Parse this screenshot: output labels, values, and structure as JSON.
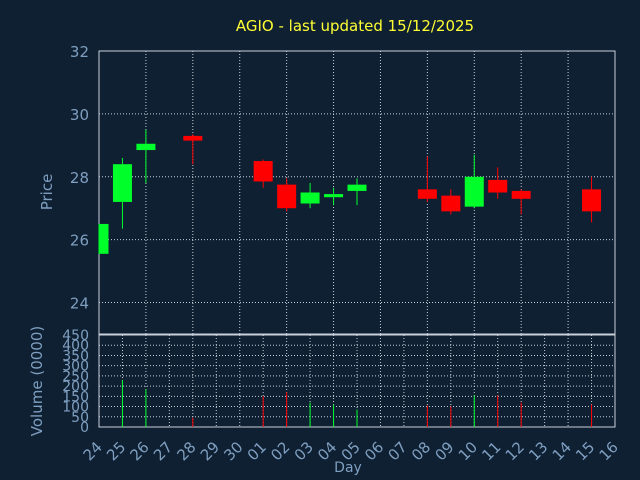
{
  "chart_data": {
    "type": "candlestick",
    "title": "AGIO - last updated 15/12/2025",
    "colors": {
      "background": "#0f2033",
      "title": "#ffff33",
      "axis_text": "#7f9fc0",
      "up": "#00ff2a",
      "down": "#ff0000",
      "frame": "#c8d0da"
    },
    "x": {
      "label": "Day",
      "ticks": [
        "24",
        "25",
        "26",
        "27",
        "28",
        "29",
        "30",
        "01",
        "02",
        "03",
        "04",
        "05",
        "06",
        "07",
        "08",
        "09",
        "10",
        "11",
        "12",
        "13",
        "14",
        "15",
        "16"
      ]
    },
    "price": {
      "label": "Price",
      "ylim": [
        23,
        32
      ],
      "ticks": [
        24,
        26,
        28,
        30,
        32
      ],
      "candles": [
        {
          "x": "24",
          "open": 25.55,
          "high": 26.5,
          "low": 25.55,
          "close": 26.5
        },
        {
          "x": "25",
          "open": 27.2,
          "high": 28.6,
          "low": 26.35,
          "close": 28.4
        },
        {
          "x": "26",
          "open": 28.85,
          "high": 29.5,
          "low": 27.8,
          "close": 29.05
        },
        {
          "x": "28",
          "open": 29.3,
          "high": 29.35,
          "low": 28.4,
          "close": 29.15
        },
        {
          "x": "01",
          "open": 28.5,
          "high": 28.55,
          "low": 27.65,
          "close": 27.85
        },
        {
          "x": "02",
          "open": 27.75,
          "high": 27.95,
          "low": 26.9,
          "close": 27.0
        },
        {
          "x": "03",
          "open": 27.15,
          "high": 27.8,
          "low": 27.0,
          "close": 27.5
        },
        {
          "x": "04",
          "open": 27.35,
          "high": 27.65,
          "low": 27.1,
          "close": 27.45
        },
        {
          "x": "05",
          "open": 27.55,
          "high": 27.95,
          "low": 27.1,
          "close": 27.75
        },
        {
          "x": "08",
          "open": 27.6,
          "high": 28.65,
          "low": 27.2,
          "close": 27.3
        },
        {
          "x": "09",
          "open": 27.4,
          "high": 27.6,
          "low": 26.8,
          "close": 26.9
        },
        {
          "x": "10",
          "open": 27.05,
          "high": 28.7,
          "low": 27.0,
          "close": 28.0
        },
        {
          "x": "11",
          "open": 27.9,
          "high": 28.3,
          "low": 27.3,
          "close": 27.5
        },
        {
          "x": "12",
          "open": 27.55,
          "high": 27.6,
          "low": 26.8,
          "close": 27.3
        },
        {
          "x": "15",
          "open": 27.6,
          "high": 28.0,
          "low": 26.55,
          "close": 26.9
        }
      ]
    },
    "volume": {
      "label": "Volume (0000)",
      "ylim": [
        0,
        450
      ],
      "ticks": [
        0,
        50,
        100,
        150,
        200,
        250,
        300,
        350,
        400,
        450
      ],
      "bars": [
        {
          "x": "24",
          "value": 0,
          "dir": "up"
        },
        {
          "x": "25",
          "value": 230,
          "dir": "up"
        },
        {
          "x": "26",
          "value": 185,
          "dir": "up"
        },
        {
          "x": "28",
          "value": 45,
          "dir": "down"
        },
        {
          "x": "01",
          "value": 150,
          "dir": "down"
        },
        {
          "x": "02",
          "value": 170,
          "dir": "down"
        },
        {
          "x": "03",
          "value": 120,
          "dir": "up"
        },
        {
          "x": "04",
          "value": 110,
          "dir": "up"
        },
        {
          "x": "05",
          "value": 85,
          "dir": "up"
        },
        {
          "x": "08",
          "value": 105,
          "dir": "down"
        },
        {
          "x": "09",
          "value": 100,
          "dir": "down"
        },
        {
          "x": "10",
          "value": 155,
          "dir": "up"
        },
        {
          "x": "11",
          "value": 155,
          "dir": "down"
        },
        {
          "x": "12",
          "value": 120,
          "dir": "down"
        },
        {
          "x": "15",
          "value": 110,
          "dir": "down"
        }
      ]
    }
  }
}
